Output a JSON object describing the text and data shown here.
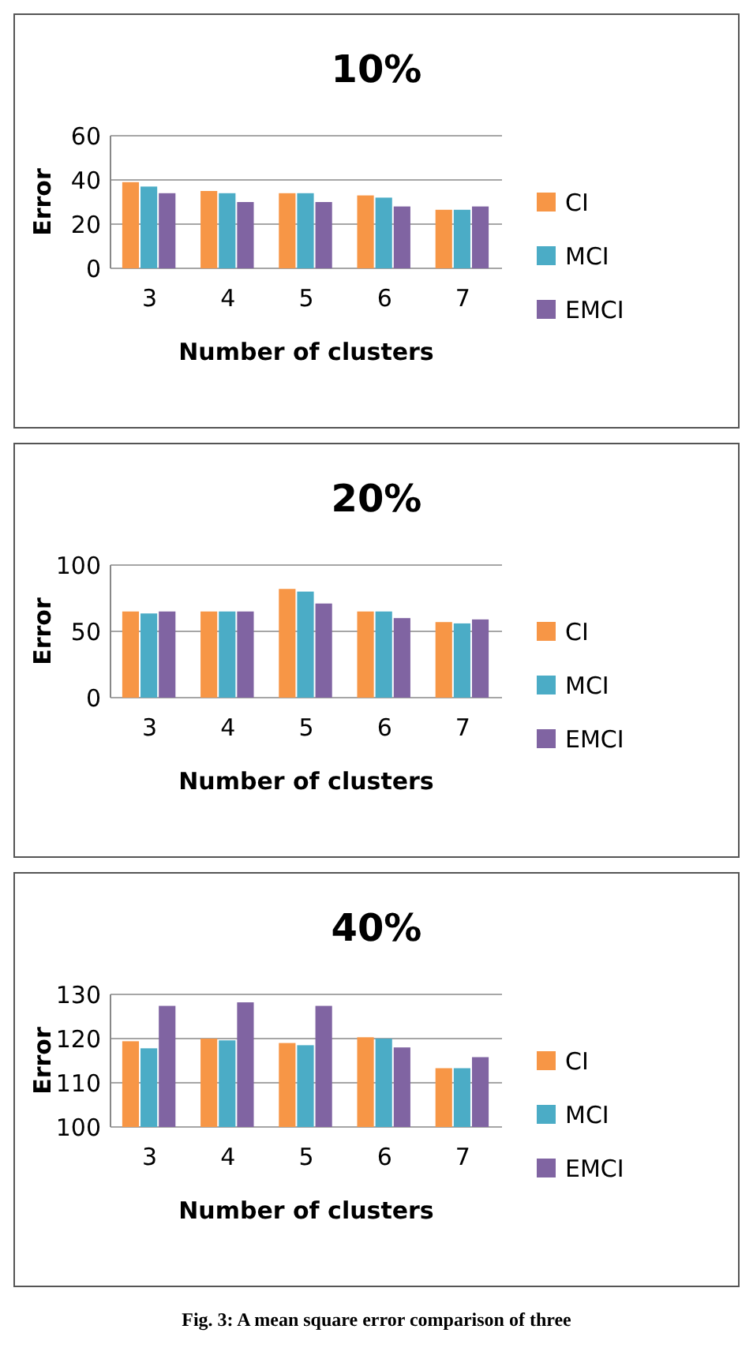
{
  "chart_data": [
    {
      "type": "bar",
      "title": "10%",
      "xlabel": "Number of clusters",
      "ylabel": "Error",
      "categories": [
        "3",
        "4",
        "5",
        "6",
        "7"
      ],
      "series": [
        {
          "name": "CI",
          "color": "#f79646",
          "values": [
            39,
            35,
            34,
            33,
            26.5
          ]
        },
        {
          "name": "MCI",
          "color": "#4bacc6",
          "values": [
            37,
            34,
            34,
            32,
            26.5
          ]
        },
        {
          "name": "EMCI",
          "color": "#8064a2",
          "values": [
            34,
            30,
            30,
            28,
            28
          ]
        }
      ],
      "ylim": [
        0,
        60
      ],
      "yticks": [
        0,
        20,
        40,
        60
      ],
      "grid": "y",
      "legend": "right"
    },
    {
      "type": "bar",
      "title": "20%",
      "xlabel": "Number of clusters",
      "ylabel": "Error",
      "categories": [
        "3",
        "4",
        "5",
        "6",
        "7"
      ],
      "series": [
        {
          "name": "CI",
          "color": "#f79646",
          "values": [
            65,
            65,
            82,
            65,
            57
          ]
        },
        {
          "name": "MCI",
          "color": "#4bacc6",
          "values": [
            63.5,
            65,
            80,
            65,
            56
          ]
        },
        {
          "name": "EMCI",
          "color": "#8064a2",
          "values": [
            65,
            65,
            71,
            60,
            59
          ]
        }
      ],
      "ylim": [
        0,
        100
      ],
      "yticks": [
        0,
        50,
        100
      ],
      "grid": "y",
      "legend": "right"
    },
    {
      "type": "bar",
      "title": "40%",
      "xlabel": "Number of clusters",
      "ylabel": "Error",
      "categories": [
        "3",
        "4",
        "5",
        "6",
        "7"
      ],
      "series": [
        {
          "name": "CI",
          "color": "#f79646",
          "values": [
            119.4,
            120,
            119,
            120.3,
            113.3
          ]
        },
        {
          "name": "MCI",
          "color": "#4bacc6",
          "values": [
            117.8,
            119.6,
            118.5,
            120,
            113.3
          ]
        },
        {
          "name": "EMCI",
          "color": "#8064a2",
          "values": [
            127.4,
            128.2,
            127.4,
            118,
            115.8
          ]
        }
      ],
      "ylim": [
        100,
        130
      ],
      "yticks": [
        100,
        110,
        120,
        130
      ],
      "grid": "y",
      "legend": "right",
      "annotations": [
        "Fig. 3: A mean square error comparison of three"
      ]
    }
  ]
}
